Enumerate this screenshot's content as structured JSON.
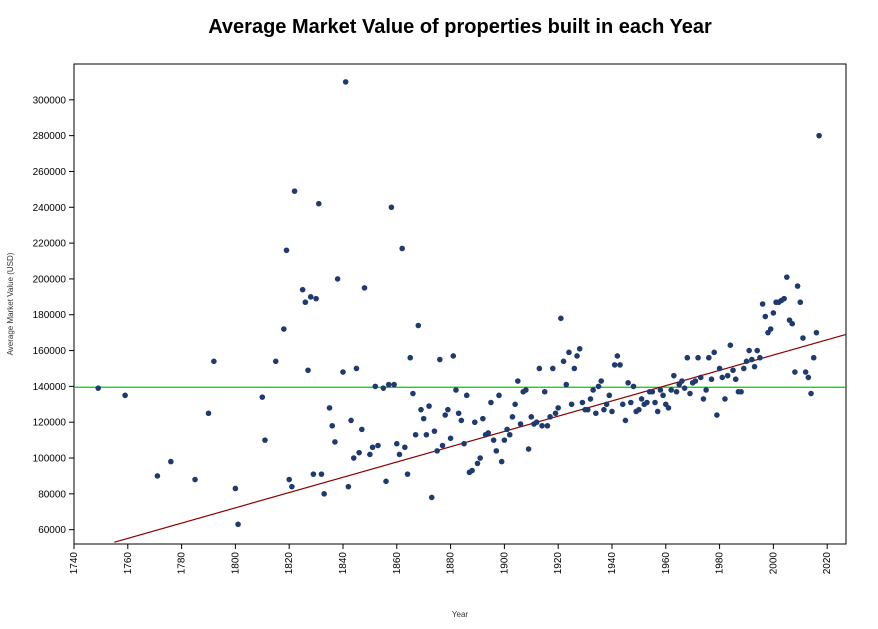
{
  "chart_data": {
    "type": "scatter",
    "title": "Average Market Value of properties built in each Year",
    "xlabel": "Year",
    "ylabel": "Average Market Value (USD)",
    "xlim": [
      1740,
      2027
    ],
    "ylim": [
      52000,
      320000
    ],
    "x_ticks": [
      1740,
      1760,
      1780,
      1800,
      1820,
      1840,
      1860,
      1880,
      1900,
      1920,
      1940,
      1960,
      1980,
      2000,
      2020
    ],
    "y_ticks": [
      60000,
      80000,
      100000,
      120000,
      140000,
      160000,
      180000,
      200000,
      220000,
      240000,
      260000,
      280000,
      300000
    ],
    "grid": false,
    "colors": {
      "points": "#1f3a6e",
      "trend_line": "#8b0000",
      "mean_line": "#00cc00"
    },
    "mean_line": {
      "y": 139500
    },
    "trend_line": {
      "x": [
        1755,
        2027
      ],
      "y": [
        53000,
        169000
      ]
    },
    "points": [
      [
        1749,
        139000
      ],
      [
        1759,
        135000
      ],
      [
        1771,
        90000
      ],
      [
        1776,
        98000
      ],
      [
        1785,
        88000
      ],
      [
        1790,
        125000
      ],
      [
        1792,
        154000
      ],
      [
        1800,
        83000
      ],
      [
        1801,
        63000
      ],
      [
        1810,
        134000
      ],
      [
        1811,
        110000
      ],
      [
        1815,
        154000
      ],
      [
        1818,
        172000
      ],
      [
        1819,
        216000
      ],
      [
        1820,
        88000
      ],
      [
        1821,
        84000
      ],
      [
        1822,
        249000
      ],
      [
        1825,
        194000
      ],
      [
        1826,
        187000
      ],
      [
        1827,
        149000
      ],
      [
        1828,
        190000
      ],
      [
        1829,
        91000
      ],
      [
        1830,
        189000
      ],
      [
        1831,
        242000
      ],
      [
        1832,
        91000
      ],
      [
        1833,
        80000
      ],
      [
        1835,
        128000
      ],
      [
        1836,
        118000
      ],
      [
        1837,
        109000
      ],
      [
        1838,
        200000
      ],
      [
        1840,
        148000
      ],
      [
        1841,
        310000
      ],
      [
        1842,
        84000
      ],
      [
        1843,
        121000
      ],
      [
        1844,
        100000
      ],
      [
        1845,
        150000
      ],
      [
        1846,
        103000
      ],
      [
        1847,
        116000
      ],
      [
        1848,
        195000
      ],
      [
        1850,
        102000
      ],
      [
        1851,
        106000
      ],
      [
        1852,
        140000
      ],
      [
        1853,
        107000
      ],
      [
        1855,
        139000
      ],
      [
        1856,
        87000
      ],
      [
        1857,
        141000
      ],
      [
        1858,
        240000
      ],
      [
        1859,
        141000
      ],
      [
        1860,
        108000
      ],
      [
        1861,
        102000
      ],
      [
        1862,
        217000
      ],
      [
        1863,
        106000
      ],
      [
        1864,
        91000
      ],
      [
        1865,
        156000
      ],
      [
        1866,
        136000
      ],
      [
        1867,
        113000
      ],
      [
        1868,
        174000
      ],
      [
        1869,
        127000
      ],
      [
        1870,
        122000
      ],
      [
        1871,
        113000
      ],
      [
        1872,
        129000
      ],
      [
        1873,
        78000
      ],
      [
        1874,
        115000
      ],
      [
        1875,
        104000
      ],
      [
        1876,
        155000
      ],
      [
        1877,
        107000
      ],
      [
        1878,
        124000
      ],
      [
        1879,
        127000
      ],
      [
        1880,
        111000
      ],
      [
        1881,
        157000
      ],
      [
        1882,
        138000
      ],
      [
        1883,
        125000
      ],
      [
        1884,
        121000
      ],
      [
        1885,
        108000
      ],
      [
        1886,
        135000
      ],
      [
        1887,
        92000
      ],
      [
        1888,
        93000
      ],
      [
        1889,
        120000
      ],
      [
        1890,
        97000
      ],
      [
        1891,
        100000
      ],
      [
        1892,
        122000
      ],
      [
        1893,
        113000
      ],
      [
        1894,
        114000
      ],
      [
        1895,
        131000
      ],
      [
        1896,
        110000
      ],
      [
        1897,
        104000
      ],
      [
        1898,
        135000
      ],
      [
        1899,
        98000
      ],
      [
        1900,
        110000
      ],
      [
        1901,
        116000
      ],
      [
        1902,
        113000
      ],
      [
        1903,
        123000
      ],
      [
        1904,
        130000
      ],
      [
        1905,
        143000
      ],
      [
        1906,
        119000
      ],
      [
        1907,
        137000
      ],
      [
        1908,
        138000
      ],
      [
        1909,
        105000
      ],
      [
        1910,
        123000
      ],
      [
        1911,
        119000
      ],
      [
        1912,
        120000
      ],
      [
        1913,
        150000
      ],
      [
        1914,
        118000
      ],
      [
        1915,
        137000
      ],
      [
        1916,
        118000
      ],
      [
        1917,
        123000
      ],
      [
        1918,
        150000
      ],
      [
        1919,
        125000
      ],
      [
        1920,
        128000
      ],
      [
        1921,
        178000
      ],
      [
        1922,
        154000
      ],
      [
        1923,
        141000
      ],
      [
        1924,
        159000
      ],
      [
        1925,
        130000
      ],
      [
        1926,
        150000
      ],
      [
        1927,
        157000
      ],
      [
        1928,
        161000
      ],
      [
        1929,
        131000
      ],
      [
        1930,
        127000
      ],
      [
        1931,
        127000
      ],
      [
        1932,
        133000
      ],
      [
        1933,
        138000
      ],
      [
        1934,
        125000
      ],
      [
        1935,
        140000
      ],
      [
        1936,
        143000
      ],
      [
        1937,
        127000
      ],
      [
        1938,
        130000
      ],
      [
        1939,
        135000
      ],
      [
        1940,
        126000
      ],
      [
        1941,
        152000
      ],
      [
        1942,
        157000
      ],
      [
        1943,
        152000
      ],
      [
        1944,
        130000
      ],
      [
        1945,
        121000
      ],
      [
        1946,
        142000
      ],
      [
        1947,
        131000
      ],
      [
        1948,
        140000
      ],
      [
        1949,
        126000
      ],
      [
        1950,
        127000
      ],
      [
        1951,
        133000
      ],
      [
        1952,
        130000
      ],
      [
        1953,
        131000
      ],
      [
        1954,
        137000
      ],
      [
        1955,
        137000
      ],
      [
        1956,
        131000
      ],
      [
        1957,
        126000
      ],
      [
        1958,
        138000
      ],
      [
        1959,
        135000
      ],
      [
        1960,
        130000
      ],
      [
        1961,
        128000
      ],
      [
        1962,
        138000
      ],
      [
        1963,
        146000
      ],
      [
        1964,
        137000
      ],
      [
        1965,
        141000
      ],
      [
        1966,
        143000
      ],
      [
        1967,
        139000
      ],
      [
        1968,
        156000
      ],
      [
        1969,
        136000
      ],
      [
        1970,
        142000
      ],
      [
        1971,
        143000
      ],
      [
        1972,
        156000
      ],
      [
        1973,
        145000
      ],
      [
        1974,
        133000
      ],
      [
        1975,
        138000
      ],
      [
        1976,
        156000
      ],
      [
        1977,
        144000
      ],
      [
        1978,
        159000
      ],
      [
        1979,
        124000
      ],
      [
        1980,
        150000
      ],
      [
        1981,
        145000
      ],
      [
        1982,
        133000
      ],
      [
        1983,
        146000
      ],
      [
        1984,
        163000
      ],
      [
        1985,
        149000
      ],
      [
        1986,
        144000
      ],
      [
        1987,
        137000
      ],
      [
        1988,
        137000
      ],
      [
        1989,
        150000
      ],
      [
        1990,
        154000
      ],
      [
        1991,
        160000
      ],
      [
        1992,
        155000
      ],
      [
        1993,
        151000
      ],
      [
        1994,
        160000
      ],
      [
        1995,
        156000
      ],
      [
        1996,
        186000
      ],
      [
        1997,
        179000
      ],
      [
        1998,
        170000
      ],
      [
        1999,
        172000
      ],
      [
        2000,
        181000
      ],
      [
        2001,
        187000
      ],
      [
        2002,
        187000
      ],
      [
        2003,
        188000
      ],
      [
        2004,
        189000
      ],
      [
        2005,
        201000
      ],
      [
        2006,
        177000
      ],
      [
        2007,
        175000
      ],
      [
        2008,
        148000
      ],
      [
        2009,
        196000
      ],
      [
        2010,
        187000
      ],
      [
        2011,
        167000
      ],
      [
        2012,
        148000
      ],
      [
        2013,
        145000
      ],
      [
        2014,
        136000
      ],
      [
        2015,
        156000
      ],
      [
        2016,
        170000
      ],
      [
        2017,
        280000
      ]
    ]
  }
}
